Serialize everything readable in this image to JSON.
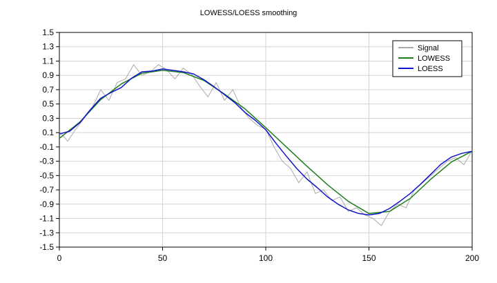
{
  "chart_data": {
    "type": "line",
    "title": "LOWESS/LOESS smoothing",
    "xlabel": "",
    "ylabel": "",
    "xlim": [
      0,
      200
    ],
    "ylim": [
      -1.5,
      1.5
    ],
    "x_ticks": [
      0,
      50,
      100,
      150,
      200
    ],
    "y_ticks": [
      -1.5,
      -1.3,
      -1.1,
      -0.9,
      -0.7,
      -0.5,
      -0.3,
      -0.1,
      0.1,
      0.3,
      0.5,
      0.7,
      0.9,
      1.1,
      1.3,
      1.5
    ],
    "y_tick_labels": [
      "-1.5",
      "-1.3",
      "-1.1",
      "-0.9",
      "-0.7",
      "-0.5",
      "-0.3",
      "-0.1",
      "0.1",
      "0.3",
      "0.5",
      "0.7",
      "0.9",
      "1.1",
      "1.3",
      "1.5"
    ],
    "grid": true,
    "legend_position": "top-right",
    "series": [
      {
        "name": "Signal",
        "color": "#a9a9a9",
        "x": [
          0,
          4,
          8,
          12,
          16,
          20,
          24,
          28,
          32,
          36,
          40,
          44,
          48,
          52,
          56,
          60,
          64,
          68,
          72,
          76,
          80,
          84,
          88,
          92,
          96,
          100,
          104,
          108,
          112,
          116,
          120,
          124,
          128,
          132,
          136,
          140,
          144,
          148,
          152,
          156,
          160,
          164,
          168,
          172,
          176,
          180,
          184,
          188,
          192,
          196,
          200
        ],
        "values": [
          0.12,
          -0.02,
          0.15,
          0.3,
          0.45,
          0.7,
          0.55,
          0.8,
          0.85,
          1.05,
          0.9,
          0.95,
          1.05,
          0.98,
          0.85,
          1.0,
          0.92,
          0.75,
          0.6,
          0.8,
          0.55,
          0.7,
          0.45,
          0.3,
          0.2,
          0.15,
          -0.1,
          -0.3,
          -0.4,
          -0.6,
          -0.45,
          -0.75,
          -0.7,
          -0.85,
          -0.8,
          -1.0,
          -0.95,
          -1.05,
          -1.1,
          -1.2,
          -1.0,
          -0.9,
          -0.95,
          -0.7,
          -0.6,
          -0.5,
          -0.4,
          -0.3,
          -0.25,
          -0.35,
          -0.15
        ]
      },
      {
        "name": "LOWESS",
        "color": "#1b7d1b",
        "x": [
          0,
          10,
          20,
          30,
          40,
          50,
          60,
          70,
          80,
          90,
          100,
          110,
          120,
          130,
          140,
          150,
          160,
          170,
          180,
          190,
          200
        ],
        "values": [
          0.02,
          0.25,
          0.56,
          0.78,
          0.93,
          0.97,
          0.94,
          0.83,
          0.64,
          0.43,
          0.17,
          -0.1,
          -0.37,
          -0.63,
          -0.86,
          -1.03,
          -1.0,
          -0.82,
          -0.55,
          -0.31,
          -0.16
        ]
      },
      {
        "name": "LOESS",
        "color": "#1212cc",
        "x": [
          0,
          5,
          10,
          15,
          20,
          25,
          30,
          35,
          40,
          45,
          50,
          55,
          60,
          65,
          70,
          75,
          80,
          85,
          90,
          95,
          100,
          105,
          110,
          115,
          120,
          125,
          130,
          135,
          140,
          145,
          150,
          155,
          160,
          165,
          170,
          175,
          180,
          185,
          190,
          195,
          200
        ],
        "values": [
          0.08,
          0.12,
          0.24,
          0.42,
          0.58,
          0.66,
          0.73,
          0.86,
          0.95,
          0.96,
          0.99,
          0.97,
          0.95,
          0.92,
          0.84,
          0.74,
          0.63,
          0.52,
          0.38,
          0.27,
          0.14,
          -0.05,
          -0.23,
          -0.4,
          -0.55,
          -0.67,
          -0.8,
          -0.9,
          -0.98,
          -1.03,
          -1.05,
          -1.03,
          -0.96,
          -0.86,
          -0.75,
          -0.62,
          -0.48,
          -0.34,
          -0.24,
          -0.19,
          -0.16
        ]
      }
    ]
  }
}
